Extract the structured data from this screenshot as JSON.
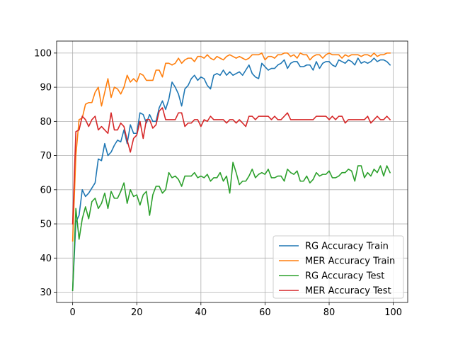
{
  "chart_data": {
    "type": "line",
    "title": "",
    "xlabel": "",
    "ylabel": "",
    "xlim": [
      -5,
      104.5
    ],
    "ylim": [
      27,
      103.5
    ],
    "xticks": [
      0,
      20,
      40,
      60,
      80,
      100
    ],
    "yticks": [
      30,
      40,
      50,
      60,
      70,
      80,
      90,
      100
    ],
    "grid": true,
    "legend_position": "bottom-right",
    "series": [
      {
        "name": "RG Accuracy Train",
        "color": "#1f77b4",
        "values": [
          30.5,
          50.5,
          52.5,
          60.0,
          58.0,
          59.0,
          60.5,
          62.0,
          69.0,
          68.5,
          73.5,
          70.0,
          71.0,
          73.0,
          74.5,
          74.0,
          77.5,
          73.5,
          79.0,
          76.5,
          76.5,
          82.5,
          82.0,
          79.5,
          82.0,
          80.0,
          80.0,
          84.0,
          86.0,
          83.5,
          86.5,
          91.5,
          90.0,
          88.0,
          84.5,
          89.5,
          90.5,
          92.5,
          93.5,
          92.0,
          93.0,
          92.5,
          90.5,
          89.5,
          93.5,
          94.0,
          93.5,
          95.0,
          93.5,
          94.5,
          93.5,
          94.0,
          94.5,
          93.5,
          95.0,
          96.5,
          94.0,
          93.0,
          92.5,
          97.0,
          96.0,
          95.0,
          95.5,
          95.5,
          96.5,
          97.0,
          98.0,
          95.5,
          97.0,
          97.5,
          97.5,
          96.0,
          96.0,
          96.5,
          96.5,
          95.0,
          97.5,
          95.5,
          97.0,
          97.5,
          97.5,
          96.5,
          96.0,
          98.0,
          97.5,
          97.0,
          98.0,
          97.5,
          96.5,
          98.5,
          97.0,
          97.5,
          97.0,
          97.5,
          98.5,
          97.5,
          98.0,
          98.0,
          97.5,
          96.5
        ]
      },
      {
        "name": "MER Accuracy Train",
        "color": "#ff7f0e",
        "values": [
          45.0,
          70.0,
          80.5,
          81.0,
          85.0,
          85.5,
          85.5,
          88.5,
          90.0,
          84.5,
          88.5,
          92.5,
          87.0,
          90.0,
          89.5,
          88.0,
          90.0,
          93.5,
          91.5,
          92.5,
          91.5,
          94.0,
          93.5,
          92.0,
          92.0,
          92.0,
          95.0,
          95.0,
          93.0,
          97.0,
          97.0,
          96.5,
          97.0,
          98.5,
          97.0,
          98.0,
          98.5,
          98.5,
          97.5,
          99.0,
          99.0,
          98.5,
          99.5,
          98.5,
          98.0,
          99.0,
          98.5,
          98.0,
          99.0,
          99.5,
          99.0,
          98.5,
          99.0,
          98.5,
          98.0,
          98.5,
          99.5,
          99.5,
          99.5,
          100.0,
          98.0,
          99.0,
          99.0,
          98.5,
          99.5,
          99.5,
          100.0,
          100.0,
          99.0,
          99.5,
          98.5,
          100.0,
          99.5,
          99.5,
          98.0,
          99.0,
          99.5,
          99.5,
          98.5,
          99.5,
          100.0,
          99.5,
          99.5,
          99.5,
          98.5,
          99.5,
          99.0,
          99.5,
          99.5,
          99.5,
          99.0,
          99.5,
          99.5,
          99.0,
          100.0,
          99.0,
          99.5,
          99.5,
          100.0,
          100.0
        ]
      },
      {
        "name": "RG Accuracy Test",
        "color": "#2ca02c",
        "values": [
          30.5,
          54.5,
          45.5,
          51.5,
          55.0,
          51.5,
          56.5,
          57.5,
          54.5,
          56.0,
          59.0,
          54.5,
          59.5,
          57.5,
          57.5,
          59.5,
          62.0,
          56.0,
          60.0,
          58.0,
          58.5,
          55.5,
          58.5,
          59.5,
          52.5,
          58.5,
          61.0,
          61.0,
          59.0,
          60.0,
          65.0,
          63.5,
          64.0,
          63.0,
          61.0,
          64.0,
          64.0,
          64.0,
          65.0,
          63.5,
          64.0,
          63.5,
          64.5,
          62.5,
          63.5,
          63.5,
          65.0,
          62.5,
          64.0,
          59.0,
          68.0,
          65.0,
          61.5,
          62.5,
          62.5,
          64.0,
          66.0,
          63.5,
          64.5,
          65.0,
          64.5,
          66.0,
          63.5,
          63.5,
          64.0,
          64.0,
          62.5,
          66.0,
          65.0,
          64.5,
          65.5,
          62.5,
          62.5,
          64.0,
          62.0,
          63.0,
          65.0,
          64.0,
          64.5,
          64.5,
          65.5,
          63.5,
          63.5,
          64.0,
          65.0,
          65.0,
          66.0,
          65.5,
          62.5,
          67.0,
          67.0,
          63.5,
          65.0,
          64.0,
          66.0,
          65.0,
          67.0,
          64.0,
          67.0,
          65.0
        ]
      },
      {
        "name": "MER Accuracy Test",
        "color": "#d62728",
        "values": [
          50.0,
          77.0,
          77.5,
          81.5,
          80.5,
          78.5,
          80.5,
          81.5,
          77.5,
          78.5,
          77.5,
          76.5,
          82.5,
          77.5,
          77.5,
          79.5,
          78.5,
          74.5,
          71.0,
          75.0,
          76.0,
          80.0,
          75.0,
          80.5,
          80.5,
          78.0,
          79.0,
          83.0,
          84.0,
          80.5,
          80.5,
          80.5,
          80.5,
          82.5,
          82.5,
          78.5,
          79.5,
          79.5,
          80.5,
          80.5,
          78.5,
          80.5,
          80.0,
          81.5,
          80.5,
          80.5,
          80.5,
          80.5,
          79.5,
          80.5,
          80.5,
          79.5,
          80.5,
          79.5,
          78.5,
          81.5,
          81.5,
          80.5,
          81.5,
          81.5,
          81.5,
          81.5,
          80.5,
          81.5,
          80.5,
          80.5,
          81.5,
          82.5,
          80.5,
          80.5,
          80.5,
          80.5,
          80.5,
          80.5,
          80.5,
          80.5,
          81.5,
          81.5,
          81.5,
          81.5,
          80.5,
          81.5,
          80.5,
          81.5,
          81.5,
          79.5,
          80.5,
          80.5,
          80.5,
          80.5,
          80.5,
          80.5,
          81.5,
          79.5,
          80.5,
          81.5,
          80.5,
          80.5,
          81.5,
          80.5
        ]
      }
    ]
  }
}
